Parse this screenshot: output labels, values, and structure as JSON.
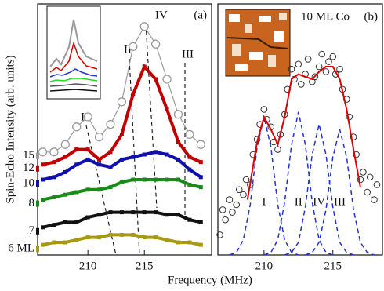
{
  "xlabel": "Frequency (MHz)",
  "ylabel": "Spin-Echo Intensity (arb. units)",
  "chart_data": [
    {
      "type": "line",
      "panel_label": "(a)",
      "xlim": [
        205.55,
        220.95
      ],
      "xticks": [
        210,
        215
      ],
      "ylim": [
        0,
        1
      ],
      "annotations": [
        "I",
        "II",
        "IV",
        "III"
      ],
      "x": [
        206,
        207,
        208,
        209,
        210,
        211,
        212,
        213,
        214,
        215,
        216,
        217,
        218,
        219,
        220
      ],
      "series": [
        {
          "name": "15",
          "color": "#9a9a9a",
          "marker": "circle",
          "values": [
            0.41,
            0.41,
            0.44,
            0.51,
            0.55,
            0.47,
            0.52,
            0.61,
            0.83,
            0.91,
            0.84,
            0.7,
            0.56,
            0.48,
            0.44
          ]
        },
        {
          "name": "12",
          "color": "#c00000",
          "marker": "square",
          "values": [
            0.36,
            0.37,
            0.39,
            0.42,
            0.42,
            0.38,
            0.41,
            0.48,
            0.64,
            0.75,
            0.7,
            0.58,
            0.45,
            0.39,
            0.37
          ]
        },
        {
          "name": "10",
          "color": "#1010b0",
          "marker": "square",
          "values": [
            0.3,
            0.31,
            0.33,
            0.36,
            0.38,
            0.36,
            0.35,
            0.38,
            0.39,
            0.4,
            0.41,
            0.4,
            0.38,
            0.34,
            0.31
          ]
        },
        {
          "name": "8",
          "color": "#1a8a1a",
          "marker": "square",
          "values": [
            0.22,
            0.23,
            0.24,
            0.25,
            0.26,
            0.26,
            0.27,
            0.29,
            0.3,
            0.3,
            0.3,
            0.3,
            0.3,
            0.28,
            0.27
          ]
        },
        {
          "name": "7",
          "color": "#111111",
          "marker": "square",
          "values": [
            0.11,
            0.12,
            0.13,
            0.13,
            0.15,
            0.16,
            0.17,
            0.17,
            0.17,
            0.17,
            0.17,
            0.16,
            0.16,
            0.14,
            0.13
          ]
        },
        {
          "name": "6 ML",
          "color": "#a89a10",
          "marker": "square",
          "values": [
            0.04,
            0.05,
            0.05,
            0.06,
            0.07,
            0.07,
            0.08,
            0.08,
            0.08,
            0.07,
            0.07,
            0.06,
            0.05,
            0.05,
            0.04
          ]
        }
      ]
    },
    {
      "type": "scatter",
      "title": "10 ML Co",
      "panel_label": "(b)",
      "xlim": [
        206.65,
        218.6
      ],
      "xticks": [
        210,
        215
      ],
      "ylim": [
        0,
        1
      ],
      "points": {
        "color": "#333333",
        "x": [
          206.8,
          207.0,
          207.2,
          207.5,
          207.7,
          208.0,
          208.2,
          208.5,
          208.7,
          209.0,
          209.2,
          209.5,
          209.7,
          210.0,
          210.2,
          210.5,
          210.7,
          211.0,
          211.2,
          211.5,
          211.7,
          212.0,
          212.2,
          212.5,
          212.7,
          213.0,
          213.2,
          213.5,
          213.7,
          214.0,
          214.2,
          214.5,
          214.7,
          215.0,
          215.2,
          215.5,
          215.7,
          216.0,
          216.2,
          216.5,
          216.7,
          217.0,
          217.2,
          217.5,
          217.7,
          218.0,
          218.2
        ],
        "values": [
          0.08,
          0.18,
          0.14,
          0.22,
          0.17,
          0.2,
          0.26,
          0.24,
          0.3,
          0.28,
          0.4,
          0.46,
          0.52,
          0.58,
          0.54,
          0.51,
          0.45,
          0.42,
          0.48,
          0.56,
          0.66,
          0.74,
          0.7,
          0.76,
          0.68,
          0.72,
          0.78,
          0.69,
          0.71,
          0.75,
          0.8,
          0.73,
          0.77,
          0.79,
          0.72,
          0.74,
          0.66,
          0.62,
          0.55,
          0.47,
          0.4,
          0.3,
          0.33,
          0.25,
          0.31,
          0.22,
          0.28
        ]
      },
      "fit": {
        "color": "#e00000",
        "x": [
          208.8,
          209.5,
          210,
          210.5,
          211,
          211.5,
          212,
          212.5,
          213,
          213.5,
          214,
          214.5,
          215,
          215.5,
          216,
          216.5,
          217
        ],
        "values": [
          0.22,
          0.45,
          0.55,
          0.5,
          0.44,
          0.55,
          0.7,
          0.72,
          0.71,
          0.7,
          0.73,
          0.75,
          0.75,
          0.7,
          0.58,
          0.42,
          0.27
        ]
      },
      "series": [
        {
          "name": "I",
          "color": "#2233cc",
          "x": [
            207.5,
            208,
            208.5,
            209,
            209.5,
            210,
            210.5,
            211,
            211.5,
            212,
            212.5
          ],
          "values": [
            0,
            0.01,
            0.06,
            0.2,
            0.43,
            0.55,
            0.43,
            0.2,
            0.06,
            0.01,
            0
          ]
        },
        {
          "name": "II",
          "color": "#2233cc",
          "x": [
            210,
            210.5,
            211,
            211.5,
            212,
            212.5,
            213,
            213.5,
            214,
            214.5,
            215
          ],
          "values": [
            0,
            0.01,
            0.06,
            0.21,
            0.44,
            0.57,
            0.44,
            0.21,
            0.06,
            0.01,
            0
          ]
        },
        {
          "name": "IV",
          "color": "#2233cc",
          "x": [
            211.5,
            212,
            212.5,
            213,
            213.5,
            214,
            214.5,
            215,
            215.5,
            216,
            216.5
          ],
          "values": [
            0,
            0.01,
            0.05,
            0.19,
            0.4,
            0.52,
            0.4,
            0.19,
            0.05,
            0.01,
            0
          ]
        },
        {
          "name": "III",
          "color": "#2233cc",
          "x": [
            213,
            213.5,
            214,
            214.5,
            215,
            215.5,
            216,
            216.5,
            217,
            217.5,
            218
          ],
          "values": [
            0,
            0.01,
            0.05,
            0.18,
            0.39,
            0.5,
            0.39,
            0.18,
            0.05,
            0.01,
            0
          ]
        }
      ]
    }
  ]
}
